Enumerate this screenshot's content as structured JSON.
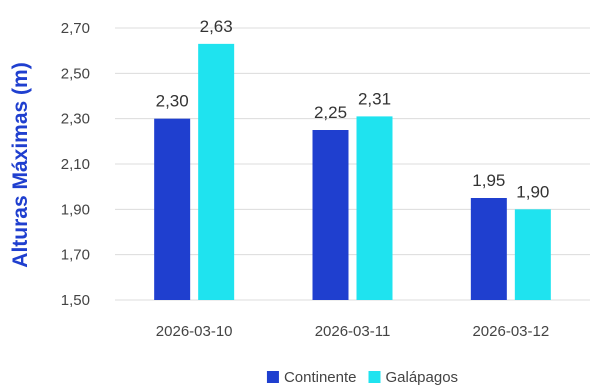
{
  "chart_data": {
    "type": "bar",
    "title": "",
    "xlabel": "",
    "ylabel": "Alturas Máximas (m)",
    "categories": [
      "2026-03-10",
      "2026-03-11",
      "2026-03-12"
    ],
    "series": [
      {
        "name": "Continente",
        "values": [
          2.3,
          2.25,
          1.95
        ],
        "value_labels": [
          "2,30",
          "2,25",
          "1,95"
        ],
        "color": "#1f3fcf"
      },
      {
        "name": "Galápagos",
        "values": [
          2.63,
          2.31,
          1.9
        ],
        "value_labels": [
          "2,63",
          "2,31",
          "1,90"
        ],
        "color": "#1fe3ef"
      }
    ],
    "ylim": [
      1.5,
      2.7
    ],
    "yticks": [
      1.5,
      1.7,
      1.9,
      2.1,
      2.3,
      2.5,
      2.7
    ],
    "ytick_labels": [
      "1,50",
      "1,70",
      "1,90",
      "2,10",
      "2,30",
      "2,50",
      "2,70"
    ],
    "grid": true,
    "legend_position": "bottom",
    "colors": {
      "ylabel": "#1f3fcf",
      "grid": "#dcdcdc",
      "tick_text": "#444444",
      "value_text": "#333333"
    }
  }
}
